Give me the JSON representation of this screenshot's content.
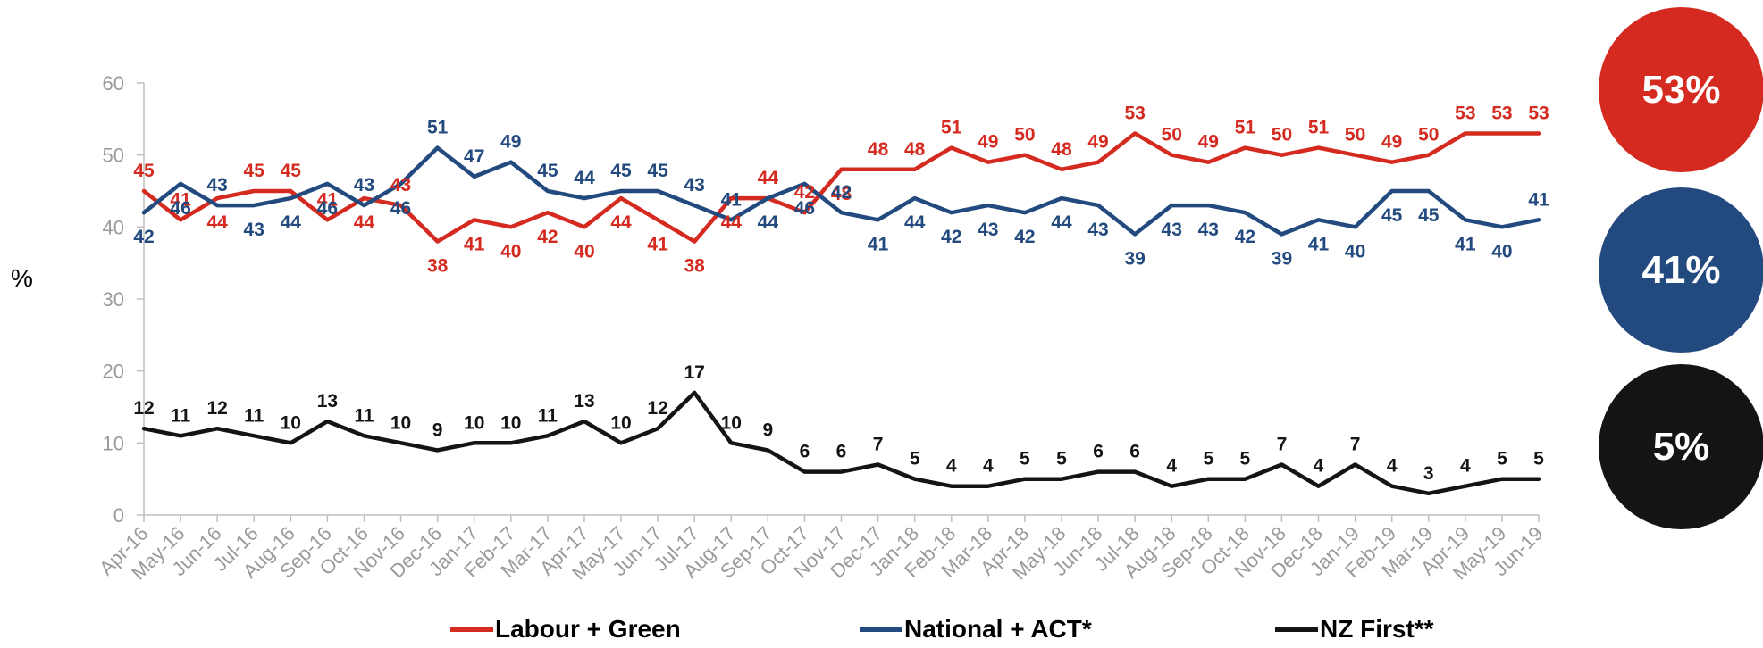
{
  "chart_data": {
    "type": "line",
    "ylabel": "%",
    "ylim": [
      0,
      60
    ],
    "yticks": [
      0,
      10,
      20,
      30,
      40,
      50,
      60
    ],
    "grid": false,
    "legend_position": "bottom",
    "categories": [
      "Apr-16",
      "May-16",
      "Jun-16",
      "Jul-16",
      "Aug-16",
      "Sep-16",
      "Oct-16",
      "Nov-16",
      "Dec-16",
      "Jan-17",
      "Feb-17",
      "Mar-17",
      "Apr-17",
      "May-17",
      "Jun-17",
      "Jul-17",
      "Aug-17",
      "Sep-17",
      "Oct-17",
      "Nov-17",
      "Dec-17",
      "Jan-18",
      "Feb-18",
      "Mar-18",
      "Apr-18",
      "May-18",
      "Jun-18",
      "Jul-18",
      "Aug-18",
      "Sep-18",
      "Oct-18",
      "Nov-18",
      "Dec-18",
      "Jan-19",
      "Feb-19",
      "Mar-19",
      "Apr-19",
      "May-19",
      "Jun-19"
    ],
    "series": [
      {
        "name": "Labour + Green",
        "color": "#d42a1f",
        "values": [
          45,
          41,
          44,
          45,
          45,
          41,
          44,
          43,
          38,
          41,
          40,
          42,
          40,
          44,
          41,
          38,
          44,
          44,
          42,
          48,
          48,
          48,
          51,
          49,
          50,
          48,
          49,
          53,
          50,
          49,
          51,
          50,
          51,
          50,
          49,
          50,
          53,
          53,
          53
        ],
        "label_pos": [
          "above",
          "above",
          "below",
          "above",
          "above",
          "above",
          "below",
          "above",
          "below",
          "below",
          "below",
          "below",
          "below",
          "below",
          "below",
          "below",
          "below",
          "above",
          "above",
          "below",
          "above",
          "above",
          "above",
          "above",
          "above",
          "above",
          "above",
          "above",
          "above",
          "above",
          "above",
          "above",
          "above",
          "above",
          "above",
          "above",
          "above",
          "above",
          "above"
        ]
      },
      {
        "name": "National + ACT*",
        "color": "#234a7e",
        "values": [
          42,
          46,
          43,
          43,
          44,
          46,
          43,
          46,
          51,
          47,
          49,
          45,
          44,
          45,
          45,
          43,
          41,
          44,
          46,
          42,
          41,
          44,
          42,
          43,
          42,
          44,
          43,
          39,
          43,
          43,
          42,
          39,
          41,
          40,
          45,
          45,
          41,
          40,
          41
        ],
        "label_pos": [
          "below",
          "below",
          "above",
          "below",
          "below",
          "below",
          "above",
          "below",
          "above",
          "above",
          "above",
          "above",
          "above",
          "above",
          "above",
          "above",
          "above",
          "below",
          "below",
          "above",
          "below",
          "below",
          "below",
          "below",
          "below",
          "below",
          "below",
          "below",
          "below",
          "below",
          "below",
          "below",
          "below",
          "below",
          "below",
          "below",
          "below",
          "below",
          "above"
        ]
      },
      {
        "name": "NZ First**",
        "color": "#141414",
        "values": [
          12,
          11,
          12,
          11,
          10,
          13,
          11,
          10,
          9,
          10,
          10,
          11,
          13,
          10,
          12,
          17,
          10,
          9,
          6,
          6,
          7,
          5,
          4,
          4,
          5,
          5,
          6,
          6,
          4,
          5,
          5,
          7,
          4,
          7,
          4,
          3,
          4,
          5,
          5
        ],
        "label_pos": [
          "above",
          "above",
          "above",
          "above",
          "above",
          "above",
          "above",
          "above",
          "above",
          "above",
          "above",
          "above",
          "above",
          "above",
          "above",
          "above",
          "above",
          "above",
          "above",
          "above",
          "above",
          "above",
          "above",
          "above",
          "above",
          "above",
          "above",
          "above",
          "above",
          "above",
          "above",
          "above",
          "above",
          "above",
          "above",
          "above",
          "above",
          "above",
          "above"
        ]
      }
    ],
    "summary_badges": [
      {
        "label": "53%",
        "color": "#d42a1f"
      },
      {
        "label": "41%",
        "color": "#234a7e"
      },
      {
        "label": "5%",
        "color": "#141414"
      }
    ]
  }
}
